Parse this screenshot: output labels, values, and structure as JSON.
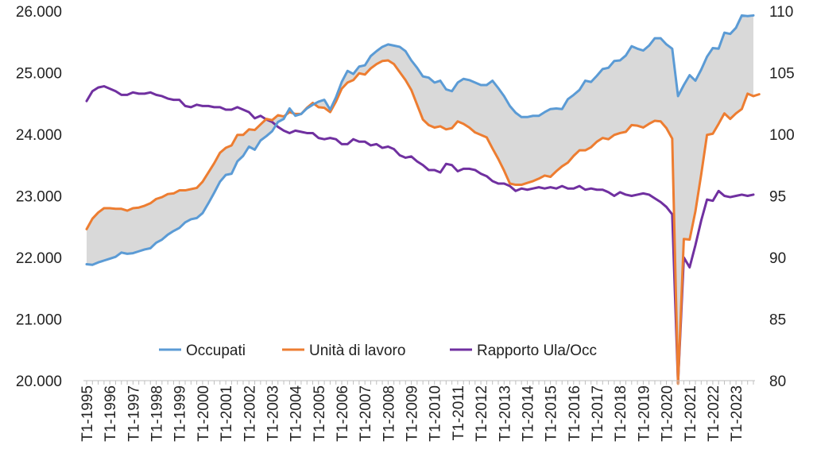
{
  "chart_data": {
    "type": "line",
    "title": "",
    "legend_position": "bottom-center",
    "grid": false,
    "x_tick_labels": [
      "T1-1995",
      "T1-1996",
      "T1-1997",
      "T1-1998",
      "T1-1999",
      "T1-2000",
      "T1-2001",
      "T1-2002",
      "T1-2003",
      "T1-2004",
      "T1-2005",
      "T1-2006",
      "T1-2007",
      "T1-2008",
      "T1-2009",
      "T1-2010",
      "T1-2011",
      "T1-2012",
      "T1-2013",
      "T1-2014",
      "T1-2015",
      "T1-2016",
      "T1-2017",
      "T1-2018",
      "T1-2019",
      "T1-2020",
      "T1-2021",
      "T1-2022",
      "T1-2023"
    ],
    "y_left": {
      "ylim": [
        20000,
        26000
      ],
      "tick_labels": [
        "20.000",
        "21.000",
        "22.000",
        "23.000",
        "24.000",
        "25.000",
        "26.000"
      ]
    },
    "y_right": {
      "ylim": [
        80,
        110
      ],
      "tick_labels": [
        "80",
        "85",
        "90",
        "95",
        "100",
        "105",
        "110"
      ]
    },
    "x_start_year": 1995,
    "quarters_per_year": 4,
    "shaded_between": [
      "Occupati",
      "Unità di lavoro"
    ],
    "shade_color": "#d9d9d9",
    "series": [
      {
        "name": "Occupati",
        "axis": "left",
        "color": "#5b9bd5",
        "values": [
          21890,
          21880,
          21920,
          21950,
          21980,
          22010,
          22080,
          22060,
          22070,
          22100,
          22130,
          22150,
          22240,
          22290,
          22370,
          22430,
          22480,
          22570,
          22620,
          22640,
          22720,
          22880,
          23050,
          23230,
          23340,
          23360,
          23560,
          23650,
          23800,
          23750,
          23900,
          23970,
          24050,
          24200,
          24250,
          24420,
          24300,
          24330,
          24420,
          24480,
          24530,
          24560,
          24400,
          24600,
          24850,
          25030,
          24980,
          25100,
          25120,
          25270,
          25350,
          25420,
          25460,
          25440,
          25420,
          25350,
          25200,
          25080,
          24940,
          24920,
          24840,
          24870,
          24730,
          24700,
          24840,
          24900,
          24880,
          24840,
          24800,
          24800,
          24870,
          24750,
          24620,
          24460,
          24350,
          24280,
          24280,
          24300,
          24300,
          24360,
          24410,
          24420,
          24410,
          24570,
          24640,
          24720,
          24870,
          24850,
          24950,
          25060,
          25080,
          25190,
          25200,
          25280,
          25430,
          25390,
          25360,
          25440,
          25560,
          25560,
          25460,
          25390,
          24620,
          24800,
          24960,
          24870,
          25050,
          25260,
          25400,
          25390,
          25650,
          25630,
          25730,
          25930,
          25920,
          25930
        ]
      },
      {
        "name": "Unità di lavoro",
        "axis": "left",
        "color": "#ed7d31",
        "values": [
          22460,
          22630,
          22730,
          22800,
          22800,
          22790,
          22790,
          22760,
          22800,
          22810,
          22840,
          22880,
          22950,
          22980,
          23030,
          23040,
          23090,
          23090,
          23110,
          23130,
          23230,
          23380,
          23530,
          23700,
          23780,
          23820,
          23990,
          23990,
          24080,
          24070,
          24160,
          24250,
          24230,
          24310,
          24290,
          24360,
          24330,
          24330,
          24430,
          24510,
          24440,
          24430,
          24360,
          24530,
          24740,
          24840,
          24880,
          24990,
          24970,
          25070,
          25140,
          25190,
          25200,
          25140,
          25010,
          24880,
          24720,
          24480,
          24240,
          24150,
          24110,
          24130,
          24080,
          24100,
          24210,
          24170,
          24110,
          24030,
          23990,
          23950,
          23770,
          23600,
          23410,
          23200,
          23180,
          23180,
          23210,
          23240,
          23280,
          23330,
          23310,
          23400,
          23480,
          23540,
          23650,
          23740,
          23740,
          23790,
          23880,
          23940,
          23920,
          23990,
          24020,
          24040,
          24150,
          24140,
          24110,
          24170,
          24220,
          24210,
          24100,
          23930,
          19950,
          22300,
          22290,
          22750,
          23350,
          23990,
          24010,
          24170,
          24340,
          24250,
          24340,
          24410,
          24660,
          24620,
          24650
        ]
      },
      {
        "name": "Rapporto Ula/Occ",
        "axis": "right",
        "color": "#7030a0",
        "values": [
          102.7,
          103.5,
          103.8,
          103.9,
          103.7,
          103.5,
          103.2,
          103.2,
          103.4,
          103.3,
          103.3,
          103.4,
          103.2,
          103.1,
          102.9,
          102.8,
          102.8,
          102.3,
          102.2,
          102.4,
          102.3,
          102.3,
          102.2,
          102.2,
          102.0,
          102.0,
          102.2,
          102.0,
          101.8,
          101.3,
          101.5,
          101.2,
          101.0,
          100.6,
          100.3,
          100.1,
          100.3,
          100.2,
          100.1,
          100.1,
          99.7,
          99.6,
          99.7,
          99.6,
          99.2,
          99.2,
          99.6,
          99.4,
          99.4,
          99.1,
          99.2,
          98.9,
          99.0,
          98.8,
          98.3,
          98.1,
          98.2,
          97.8,
          97.5,
          97.1,
          97.1,
          96.9,
          97.6,
          97.5,
          97.0,
          97.2,
          97.2,
          97.1,
          96.8,
          96.6,
          96.2,
          96.0,
          96.0,
          95.8,
          95.4,
          95.6,
          95.5,
          95.6,
          95.7,
          95.6,
          95.7,
          95.6,
          95.8,
          95.6,
          95.6,
          95.8,
          95.5,
          95.6,
          95.5,
          95.5,
          95.3,
          95.0,
          95.3,
          95.1,
          95.0,
          95.1,
          95.2,
          95.1,
          94.8,
          94.5,
          94.1,
          93.5,
          79.8,
          90.0,
          89.2,
          91.0,
          93.0,
          94.7,
          94.6,
          95.4,
          95.0,
          94.9,
          95.0,
          95.1,
          95.0,
          95.1
        ]
      }
    ]
  }
}
